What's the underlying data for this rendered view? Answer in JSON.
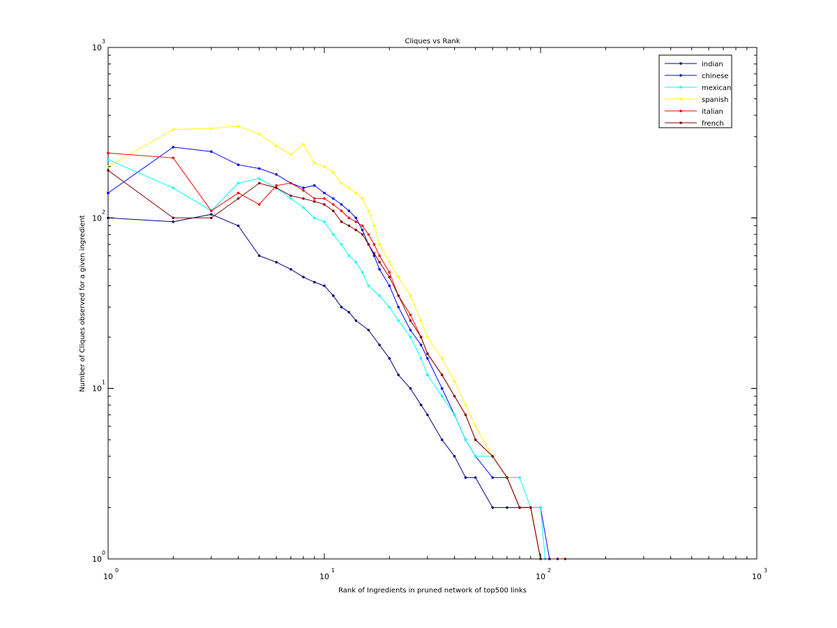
{
  "chart_data": {
    "type": "line",
    "title": "Cliques vs Rank",
    "xlabel": "Rank of Ingredients in pruned network of top500 links",
    "ylabel": "Number of Cliques observed for a given ingredient",
    "xscale": "log",
    "yscale": "log",
    "xlim": [
      1,
      1000
    ],
    "ylim": [
      1,
      1000
    ],
    "x_ticks": [
      {
        "base": "10",
        "exp": "0"
      },
      {
        "base": "10",
        "exp": "1"
      },
      {
        "base": "10",
        "exp": "2"
      },
      {
        "base": "10",
        "exp": "3"
      }
    ],
    "y_ticks": [
      {
        "base": "10",
        "exp": "0"
      },
      {
        "base": "10",
        "exp": "1"
      },
      {
        "base": "10",
        "exp": "2"
      },
      {
        "base": "10",
        "exp": "3"
      }
    ],
    "grid": false,
    "legend_position": "top-right",
    "series": [
      {
        "name": "indian",
        "color": "#000080",
        "points": [
          [
            1,
            100
          ],
          [
            2,
            95
          ],
          [
            3,
            105
          ],
          [
            4,
            90
          ],
          [
            5,
            60
          ],
          [
            6,
            55
          ],
          [
            7,
            50
          ],
          [
            8,
            45
          ],
          [
            9,
            42
          ],
          [
            10,
            40
          ],
          [
            11,
            35
          ],
          [
            12,
            30
          ],
          [
            13,
            28
          ],
          [
            14,
            25
          ],
          [
            16,
            22
          ],
          [
            18,
            18
          ],
          [
            20,
            15
          ],
          [
            22,
            12
          ],
          [
            25,
            10
          ],
          [
            28,
            8
          ],
          [
            30,
            7
          ],
          [
            35,
            5
          ],
          [
            40,
            4
          ],
          [
            45,
            3
          ],
          [
            50,
            3
          ],
          [
            60,
            2
          ],
          [
            70,
            2
          ],
          [
            80,
            2
          ],
          [
            90,
            2
          ],
          [
            100,
            1
          ],
          [
            110,
            1
          ],
          [
            120,
            1
          ]
        ]
      },
      {
        "name": "chinese",
        "color": "#0000ff",
        "points": [
          [
            1,
            140
          ],
          [
            2,
            260
          ],
          [
            3,
            245
          ],
          [
            4,
            205
          ],
          [
            5,
            195
          ],
          [
            6,
            180
          ],
          [
            7,
            160
          ],
          [
            8,
            150
          ],
          [
            9,
            155
          ],
          [
            10,
            140
          ],
          [
            11,
            130
          ],
          [
            12,
            120
          ],
          [
            13,
            110
          ],
          [
            14,
            100
          ],
          [
            15,
            85
          ],
          [
            16,
            70
          ],
          [
            17,
            60
          ],
          [
            18,
            50
          ],
          [
            20,
            40
          ],
          [
            22,
            30
          ],
          [
            25,
            22
          ],
          [
            28,
            18
          ],
          [
            30,
            15
          ],
          [
            35,
            10
          ],
          [
            40,
            7
          ],
          [
            45,
            5
          ],
          [
            50,
            4
          ],
          [
            60,
            3
          ],
          [
            70,
            3
          ],
          [
            80,
            2
          ],
          [
            90,
            2
          ],
          [
            100,
            2
          ],
          [
            110,
            1
          ]
        ]
      },
      {
        "name": "mexican",
        "color": "#00ffff",
        "points": [
          [
            1,
            220
          ],
          [
            2,
            150
          ],
          [
            3,
            110
          ],
          [
            4,
            160
          ],
          [
            5,
            170
          ],
          [
            6,
            150
          ],
          [
            7,
            130
          ],
          [
            8,
            115
          ],
          [
            9,
            100
          ],
          [
            10,
            95
          ],
          [
            11,
            80
          ],
          [
            12,
            70
          ],
          [
            13,
            60
          ],
          [
            14,
            55
          ],
          [
            15,
            48
          ],
          [
            16,
            40
          ],
          [
            18,
            35
          ],
          [
            20,
            30
          ],
          [
            22,
            25
          ],
          [
            25,
            20
          ],
          [
            28,
            15
          ],
          [
            30,
            12
          ],
          [
            35,
            9
          ],
          [
            40,
            7
          ],
          [
            45,
            5
          ],
          [
            50,
            4
          ],
          [
            60,
            4
          ],
          [
            70,
            3
          ],
          [
            80,
            3
          ],
          [
            90,
            2
          ],
          [
            100,
            2
          ],
          [
            105,
            1
          ]
        ]
      },
      {
        "name": "spanish",
        "color": "#ffff00",
        "points": [
          [
            1,
            200
          ],
          [
            2,
            330
          ],
          [
            3,
            335
          ],
          [
            4,
            345
          ],
          [
            5,
            310
          ],
          [
            6,
            265
          ],
          [
            7,
            235
          ],
          [
            8,
            270
          ],
          [
            9,
            210
          ],
          [
            10,
            200
          ],
          [
            11,
            185
          ],
          [
            12,
            160
          ],
          [
            13,
            150
          ],
          [
            14,
            140
          ],
          [
            15,
            130
          ],
          [
            16,
            110
          ],
          [
            17,
            90
          ],
          [
            18,
            70
          ],
          [
            20,
            55
          ],
          [
            22,
            45
          ],
          [
            25,
            35
          ],
          [
            28,
            25
          ],
          [
            30,
            20
          ],
          [
            35,
            15
          ],
          [
            40,
            11
          ],
          [
            45,
            8
          ],
          [
            50,
            6
          ],
          [
            60,
            4
          ],
          [
            70,
            3
          ],
          [
            80,
            2
          ],
          [
            90,
            2
          ],
          [
            100,
            1
          ]
        ]
      },
      {
        "name": "italian",
        "color": "#ff0000",
        "points": [
          [
            1,
            240
          ],
          [
            2,
            225
          ],
          [
            3,
            110
          ],
          [
            4,
            140
          ],
          [
            5,
            120
          ],
          [
            6,
            155
          ],
          [
            7,
            160
          ],
          [
            8,
            145
          ],
          [
            9,
            130
          ],
          [
            10,
            130
          ],
          [
            11,
            120
          ],
          [
            12,
            110
          ],
          [
            13,
            100
          ],
          [
            14,
            95
          ],
          [
            15,
            90
          ],
          [
            16,
            80
          ],
          [
            17,
            70
          ],
          [
            18,
            60
          ],
          [
            20,
            48
          ],
          [
            22,
            35
          ],
          [
            25,
            27
          ],
          [
            28,
            20
          ],
          [
            30,
            16
          ],
          [
            35,
            12
          ],
          [
            40,
            9
          ],
          [
            45,
            7
          ],
          [
            50,
            5
          ],
          [
            60,
            4
          ],
          [
            70,
            3
          ],
          [
            80,
            2
          ],
          [
            90,
            2
          ],
          [
            100,
            1
          ]
        ]
      },
      {
        "name": "french",
        "color": "#800000",
        "points": [
          [
            1,
            190
          ],
          [
            2,
            100
          ],
          [
            3,
            100
          ],
          [
            4,
            130
          ],
          [
            5,
            160
          ],
          [
            6,
            150
          ],
          [
            7,
            135
          ],
          [
            8,
            130
          ],
          [
            9,
            125
          ],
          [
            10,
            120
          ],
          [
            11,
            110
          ],
          [
            12,
            95
          ],
          [
            13,
            90
          ],
          [
            14,
            85
          ],
          [
            15,
            80
          ],
          [
            16,
            70
          ],
          [
            17,
            62
          ],
          [
            18,
            55
          ],
          [
            20,
            45
          ],
          [
            22,
            35
          ],
          [
            25,
            25
          ],
          [
            28,
            20
          ],
          [
            30,
            16
          ],
          [
            35,
            12
          ],
          [
            40,
            9
          ],
          [
            45,
            7
          ],
          [
            50,
            5
          ],
          [
            60,
            4
          ],
          [
            70,
            3
          ],
          [
            80,
            2
          ],
          [
            90,
            2
          ],
          [
            100,
            1
          ],
          [
            130,
            1
          ]
        ]
      }
    ]
  }
}
